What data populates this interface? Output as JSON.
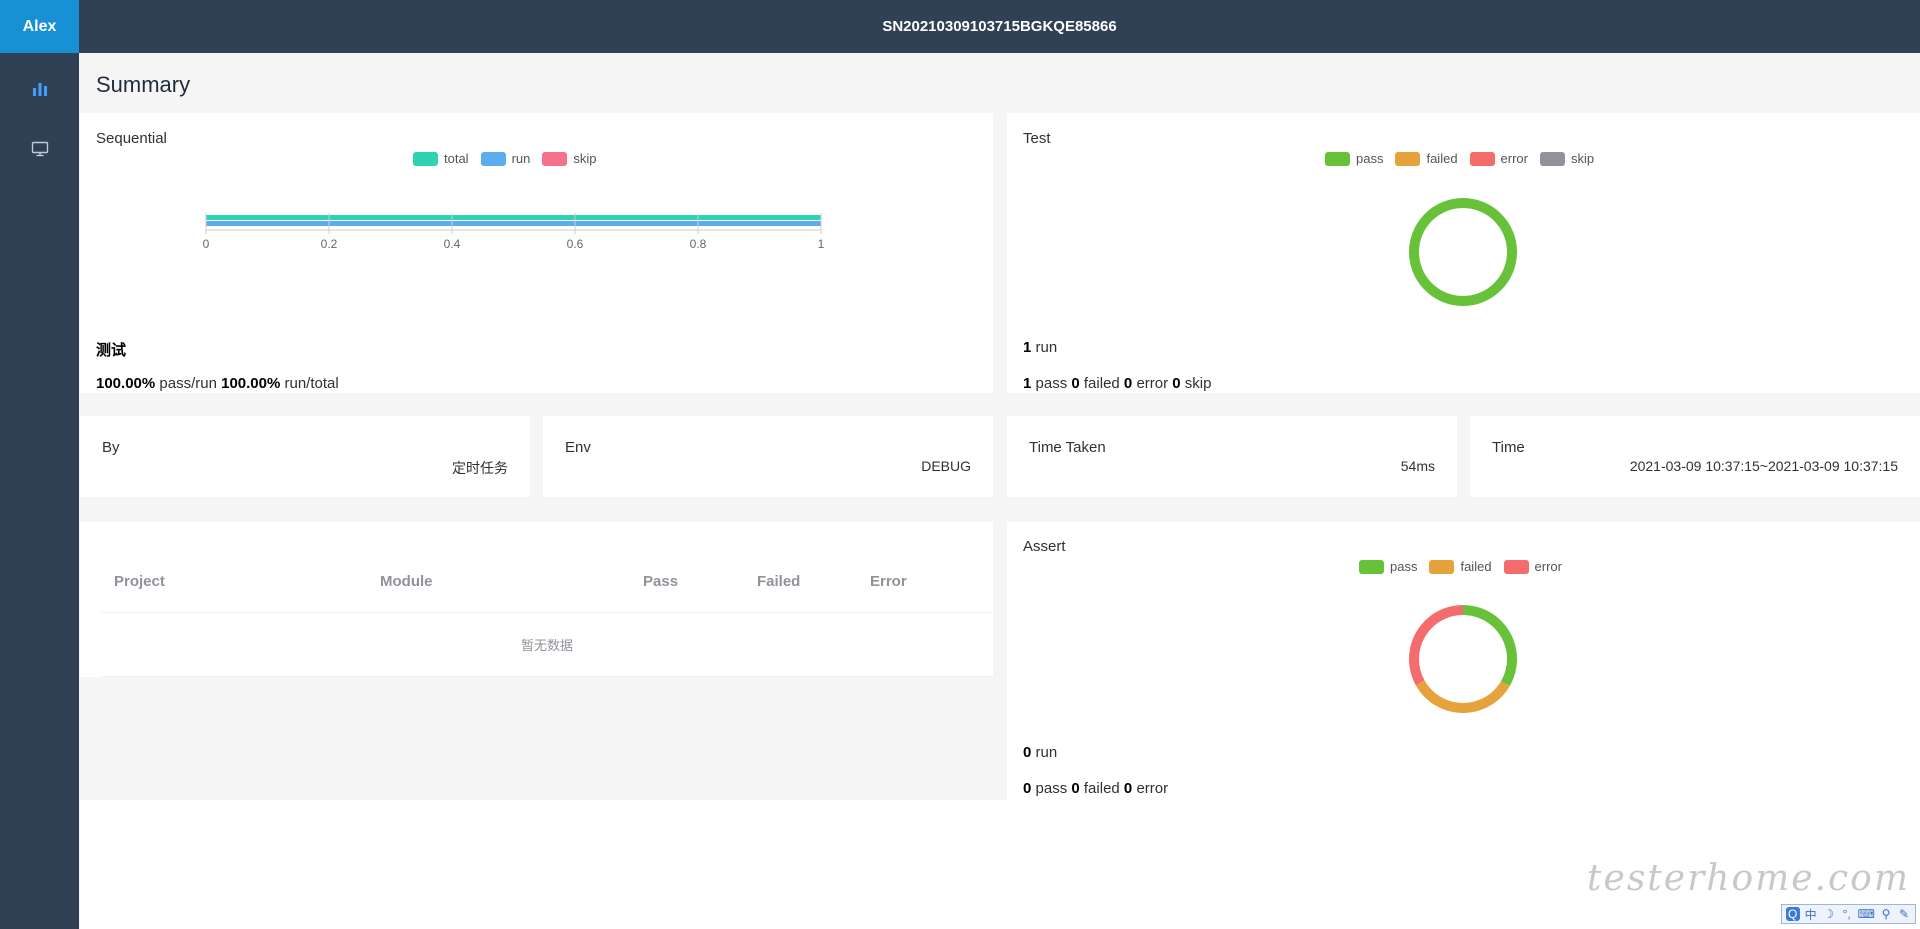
{
  "app": {
    "brand": "Alex",
    "report_id": "SN20210309103715BGKQE85866"
  },
  "sidebar": {
    "items": [
      {
        "icon": "bar-chart-icon"
      },
      {
        "icon": "monitor-icon"
      }
    ]
  },
  "page": {
    "title": "Summary"
  },
  "sequential": {
    "title": "Sequential",
    "legend": [
      {
        "label": "total",
        "color": "#2fd3b1"
      },
      {
        "label": "run",
        "color": "#5aaef0"
      },
      {
        "label": "skip",
        "color": "#f5728a"
      }
    ],
    "suite_name": "测试",
    "pass_run_pct": "100.00%",
    "pass_run_label": "pass/run",
    "run_total_pct": "100.00%",
    "run_total_label": "run/total"
  },
  "test": {
    "title": "Test",
    "legend": [
      {
        "label": "pass",
        "color": "#67c23a"
      },
      {
        "label": "failed",
        "color": "#e6a23c"
      },
      {
        "label": "error",
        "color": "#f56c6c"
      },
      {
        "label": "skip",
        "color": "#909399"
      }
    ],
    "run_count": "1",
    "run_label": "run",
    "pass": "1",
    "pass_label": "pass",
    "failed": "0",
    "failed_label": "failed",
    "error": "0",
    "error_label": "error",
    "skip": "0",
    "skip_label": "skip"
  },
  "info": {
    "by_label": "By",
    "by_value": "定时任务",
    "env_label": "Env",
    "env_value": "DEBUG",
    "time_taken_label": "Time Taken",
    "time_taken_value": "54ms",
    "time_label": "Time",
    "time_value": "2021-03-09 10:37:15~2021-03-09 10:37:15"
  },
  "project_table": {
    "columns": [
      "Project",
      "Module",
      "Pass",
      "Failed",
      "Error"
    ],
    "empty_text": "暂无数据"
  },
  "assert": {
    "title": "Assert",
    "legend": [
      {
        "label": "pass",
        "color": "#67c23a"
      },
      {
        "label": "failed",
        "color": "#e6a23c"
      },
      {
        "label": "error",
        "color": "#f56c6c"
      }
    ],
    "run_count": "0",
    "run_label": "run",
    "pass": "0",
    "pass_label": "pass",
    "failed": "0",
    "failed_label": "failed",
    "error": "0",
    "error_label": "error"
  },
  "watermark": "testerhome.com",
  "ime_toolbar": [
    "中",
    "☽",
    "°,",
    "⌨",
    "⚲",
    "✎"
  ],
  "chart_data": [
    {
      "type": "bar",
      "orientation": "horizontal",
      "title": "Sequential",
      "series": [
        {
          "name": "total",
          "values": [
            1
          ]
        },
        {
          "name": "run",
          "values": [
            1
          ]
        },
        {
          "name": "skip",
          "values": [
            0
          ]
        }
      ],
      "xlim": [
        0,
        1
      ],
      "xticks": [
        "0",
        "0.2",
        "0.4",
        "0.6",
        "0.8",
        "1"
      ],
      "grid": true,
      "legend": "top-center"
    },
    {
      "type": "pie",
      "title": "Test",
      "donut": true,
      "labels": [
        "pass",
        "failed",
        "error",
        "skip"
      ],
      "values": [
        1,
        0,
        0,
        0
      ],
      "legend": "top-center"
    },
    {
      "type": "pie",
      "title": "Assert",
      "donut": true,
      "labels": [
        "pass",
        "failed",
        "error"
      ],
      "values": [
        0,
        0,
        0
      ],
      "legend": "top-center"
    }
  ]
}
